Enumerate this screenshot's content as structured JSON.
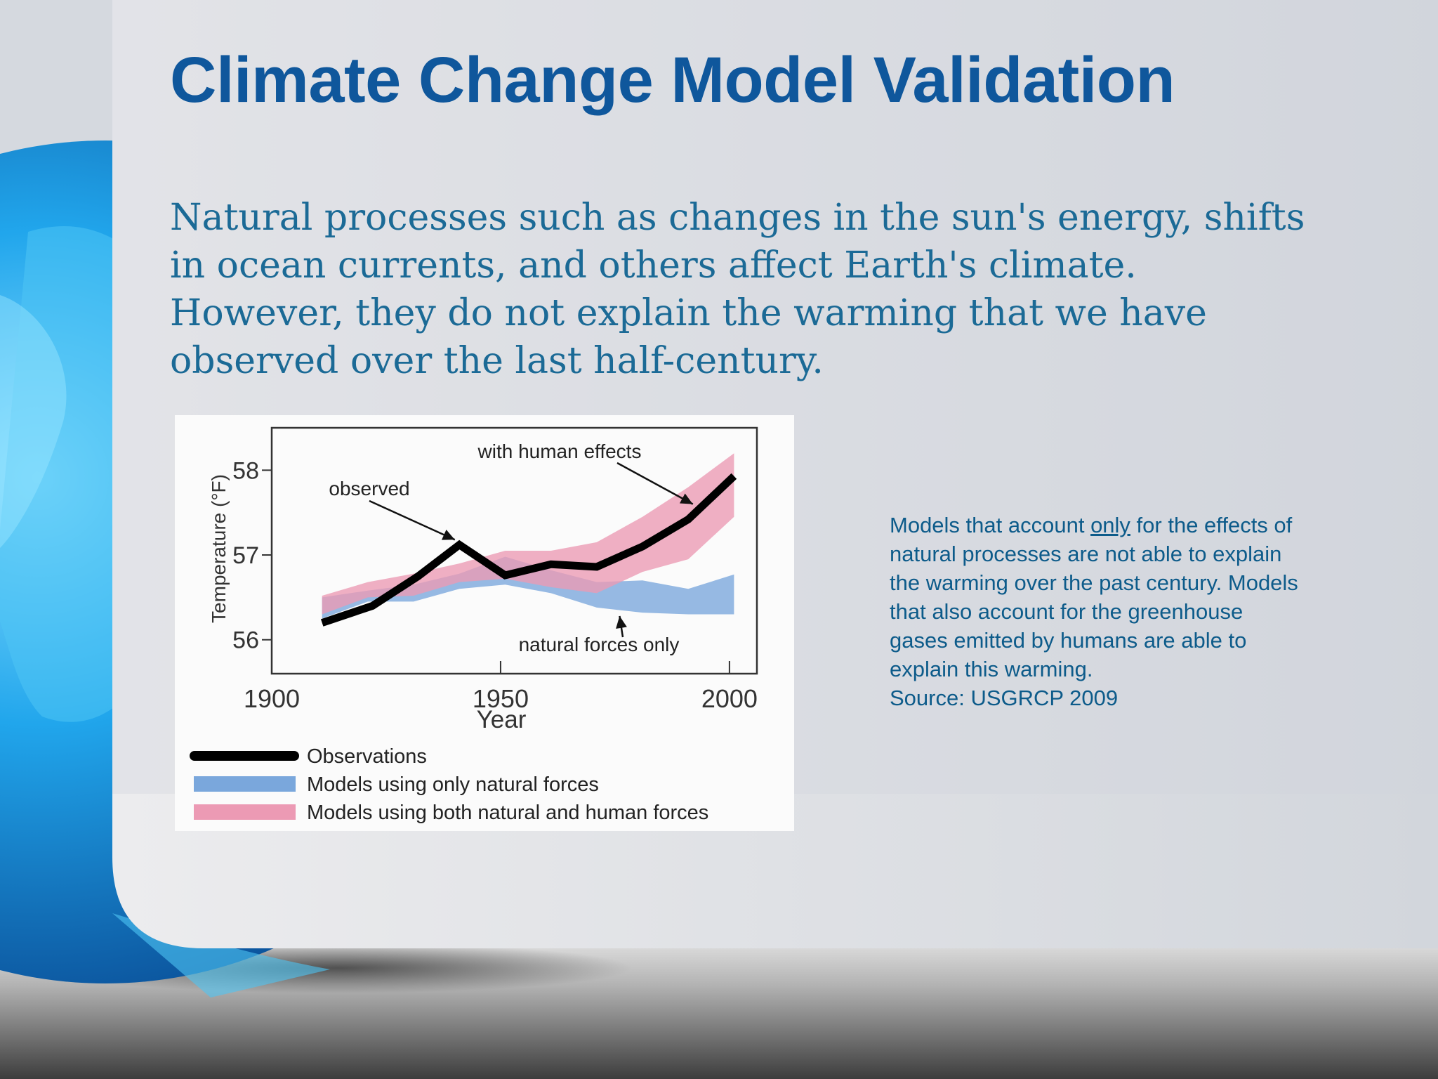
{
  "slide": {
    "title": "Climate Change Model Validation",
    "intro": "Natural processes such as changes in the sun's energy, shifts in ocean currents, and others affect Earth's climate. However, they do not explain the warming that we have observed over the last half-century.",
    "caption": {
      "before": "Models that account ",
      "emphasis": "only",
      "after": " for the effects of natural processes are not able to explain the warming over the past century. Models that also account for the greenhouse gases emitted by humans are able to explain this warming.",
      "source": "Source: USGRCP 2009"
    }
  },
  "colors": {
    "title": "#0f579c",
    "observations": "#000000",
    "natural_band": "#7aa7dc",
    "human_band": "#ec9ab4"
  },
  "chart_data": {
    "type": "line",
    "title": "",
    "xlabel": "Year",
    "ylabel": "Temperature (°F)",
    "xlim": [
      1900,
      2006
    ],
    "ylim": [
      55.6,
      58.5
    ],
    "x_ticks": [
      1900,
      1950,
      2000
    ],
    "y_ticks": [
      56,
      57,
      58
    ],
    "grid": false,
    "legend_position": "bottom",
    "legend": [
      "Observations",
      "Models using only natural forces",
      "Models using both natural and human forces"
    ],
    "series": [
      {
        "name": "Observations",
        "style": "line",
        "x": [
          1911,
          1922,
          1932,
          1941,
          1951,
          1961,
          1971,
          1981,
          1991,
          2001
        ],
        "y": [
          56.2,
          56.4,
          56.75,
          57.12,
          56.76,
          56.89,
          56.86,
          57.1,
          57.42,
          57.93
        ]
      },
      {
        "name": "Models using only natural forces",
        "style": "band",
        "x": [
          1911,
          1921,
          1931,
          1941,
          1951,
          1961,
          1971,
          1981,
          1991,
          2001
        ],
        "lower": [
          56.25,
          56.45,
          56.45,
          56.6,
          56.65,
          56.55,
          56.38,
          56.32,
          56.3,
          56.3
        ],
        "upper": [
          56.5,
          56.58,
          56.65,
          56.78,
          56.98,
          56.82,
          56.68,
          56.7,
          56.6,
          56.77
        ]
      },
      {
        "name": "Models using both natural and human forces",
        "style": "band",
        "x": [
          1911,
          1921,
          1931,
          1941,
          1951,
          1961,
          1971,
          1981,
          1991,
          2001
        ],
        "lower": [
          56.3,
          56.5,
          56.52,
          56.68,
          56.72,
          56.62,
          56.55,
          56.8,
          56.95,
          57.45
        ],
        "upper": [
          56.52,
          56.68,
          56.78,
          56.9,
          57.05,
          57.05,
          57.15,
          57.45,
          57.8,
          58.2
        ]
      }
    ],
    "annotations": [
      {
        "text": "with human effects",
        "target": [
          1992,
          57.6
        ]
      },
      {
        "text": "observed",
        "target": [
          1940,
          57.18
        ]
      },
      {
        "text": "natural forces only",
        "target": [
          1976,
          56.28
        ]
      }
    ]
  }
}
